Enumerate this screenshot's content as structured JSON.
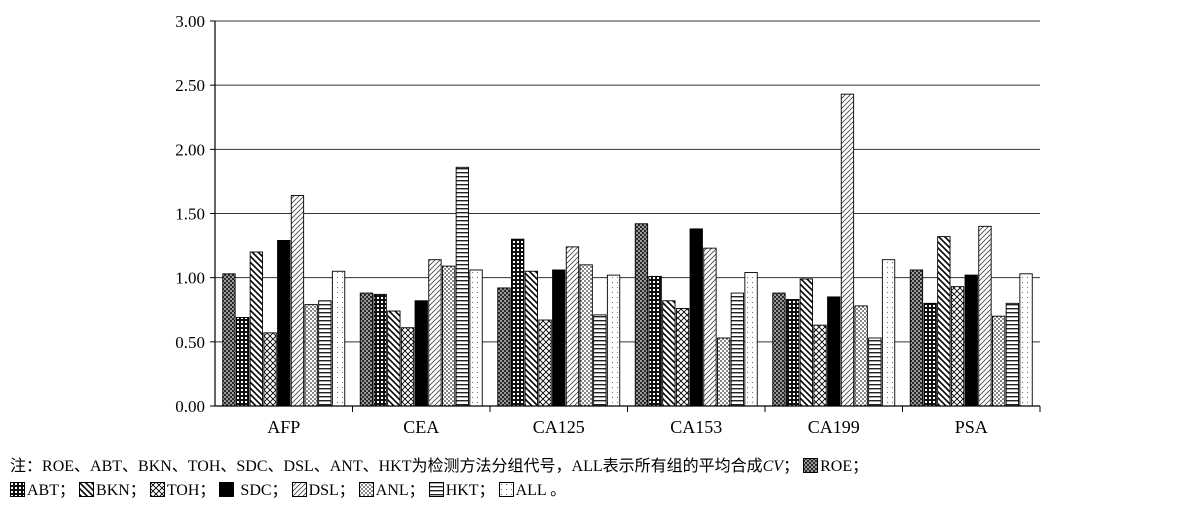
{
  "chart_data": {
    "type": "bar",
    "categories": [
      "AFP",
      "CEA",
      "CA125",
      "CA153",
      "CA199",
      "PSA"
    ],
    "series": [
      {
        "name": "ROE",
        "values": [
          1.03,
          0.88,
          0.92,
          1.42,
          0.88,
          1.06
        ]
      },
      {
        "name": "ABT",
        "values": [
          0.69,
          0.87,
          1.3,
          1.01,
          0.83,
          0.8
        ]
      },
      {
        "name": "BKN",
        "values": [
          1.2,
          0.74,
          1.05,
          0.82,
          0.99,
          1.32
        ]
      },
      {
        "name": "TOH",
        "values": [
          0.57,
          0.61,
          0.67,
          0.76,
          0.63,
          0.93
        ]
      },
      {
        "name": "SDC",
        "values": [
          1.29,
          0.82,
          1.06,
          1.38,
          0.85,
          1.02
        ]
      },
      {
        "name": "DSL",
        "values": [
          1.64,
          1.14,
          1.24,
          1.23,
          2.43,
          1.4
        ]
      },
      {
        "name": "ANL",
        "values": [
          0.79,
          1.09,
          1.1,
          0.53,
          0.78,
          0.7
        ]
      },
      {
        "name": "HKT",
        "values": [
          0.82,
          1.86,
          0.71,
          0.88,
          0.53,
          0.8
        ]
      },
      {
        "name": "ALL",
        "values": [
          1.05,
          1.06,
          1.02,
          1.04,
          1.14,
          1.03
        ]
      }
    ],
    "yticks": [
      "0.00",
      "0.50",
      "1.00",
      "1.50",
      "2.00",
      "2.50",
      "3.00"
    ],
    "ylim": [
      0,
      3
    ],
    "grid": true,
    "legend": "bottom",
    "title": "",
    "xlabel": "",
    "ylabel": ""
  },
  "note": {
    "prefix": "注：",
    "body": "ROE、ABT、BKN、TOH、SDC、DSL、ANT、HKT为检测方法分组代号，ALL表示所有组的平均合成",
    "cv": "CV",
    "legend_items": [
      {
        "label": "ROE；",
        "pattern": "pROE"
      },
      {
        "label": "ABT；",
        "pattern": "pABT"
      },
      {
        "label": "BKN；",
        "pattern": "pBKN"
      },
      {
        "label": "TOH；",
        "pattern": "pTOH"
      },
      {
        "label": " SDC；",
        "pattern": "pSDC"
      },
      {
        "label": "DSL；",
        "pattern": "pDSL"
      },
      {
        "label": "ANL；",
        "pattern": "pANL"
      },
      {
        "label": "HKT；",
        "pattern": "pHKT"
      },
      {
        "label": "ALL 。",
        "pattern": "pALL"
      }
    ]
  }
}
